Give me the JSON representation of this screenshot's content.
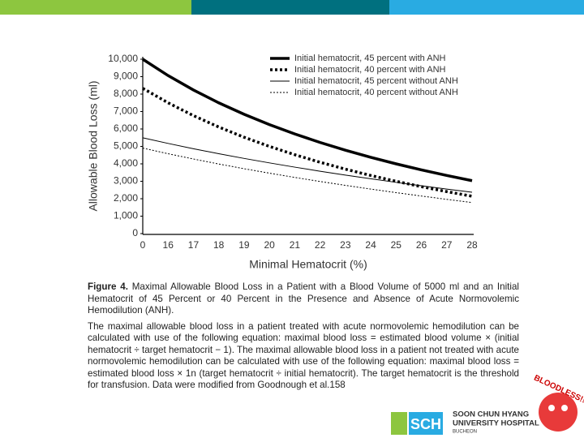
{
  "chart_data": {
    "type": "line",
    "y_label": "Allowable Blood Loss (ml)",
    "x_label": "Minimal Hematocrit (%)",
    "categories": [
      "0",
      "16",
      "17",
      "18",
      "19",
      "20",
      "21",
      "22",
      "23",
      "24",
      "25",
      "26",
      "27",
      "28"
    ],
    "series": [
      {
        "name": "Initial hematocrit, 45 percent with ANH",
        "color": "#000000",
        "width": 3.5,
        "dash": "none",
        "values": [
          10000,
          9062,
          8235,
          7500,
          6842,
          6250,
          5714,
          5227,
          4783,
          4375,
          4000,
          3654,
          3333,
          3036
        ]
      },
      {
        "name": "Initial hematocrit, 40 percent with ANH",
        "color": "#000000",
        "width": 3.5,
        "dash": "3 3",
        "values": [
          8333,
          7500,
          6765,
          6111,
          5526,
          5000,
          4524,
          4091,
          3696,
          3333,
          3000,
          2692,
          2407,
          2143
        ]
      },
      {
        "name": "Initial hematocrit, 45 percent without ANH",
        "color": "#000000",
        "width": 1,
        "dash": "none",
        "values": [
          5493,
          5171,
          4867,
          4581,
          4311,
          4055,
          3811,
          3578,
          3356,
          3143,
          2939,
          2743,
          2554,
          2372
        ]
      },
      {
        "name": "Initial hematocrit, 40 percent without ANH",
        "color": "#000000",
        "width": 1,
        "dash": "2 2",
        "values": [
          4904,
          4581,
          4278,
          3992,
          3721,
          3466,
          3221,
          2989,
          2766,
          2554,
          2350,
          2154,
          1965,
          1783
        ]
      }
    ],
    "ylim": [
      0,
      10000
    ],
    "yticks": [
      0,
      {
        "value": 1000,
        "label": "1,000"
      },
      {
        "value": 2000,
        "label": "2,000"
      },
      {
        "value": 3000,
        "label": "3,000"
      },
      {
        "value": 4000,
        "label": "4,000"
      },
      {
        "value": 5000,
        "label": "5,000"
      },
      {
        "value": 6000,
        "label": "6,000"
      },
      {
        "value": 7000,
        "label": "7,000"
      },
      {
        "value": 8000,
        "label": "8,000"
      },
      {
        "value": 9000,
        "label": "9,000"
      },
      {
        "value": 10000,
        "label": "10,000"
      }
    ],
    "grid": false,
    "legend": "top-right"
  },
  "caption": {
    "label": "Figure 4.",
    "title": "Maximal Allowable Blood Loss in a Patient with a Blood Volume of 5000 ml and an Initial Hematocrit of 45 Percent or 40 Percent in the Presence and Absence of Acute Normovolemic Hemodilution (ANH).",
    "body": "The maximal allowable blood loss in a patient treated with acute normovolemic hemodilution can be calculated with use of the following equation: maximal blood loss = estimated blood volume × (initial hematocrit ÷ target hematocrit − 1). The maximal allowable blood loss in a patient not treated with acute normovolemic hemodilution can be calculated with use of the following equation: maximal blood loss = estimated blood loss × 1n (target hematocrit ÷ initial hematocrit). The target hematocrit is the threshold for transfusion. Data were modified from Goodnough et al.158"
  },
  "logo": {
    "mark": "SCH",
    "name1": "SOON CHUN HYANG",
    "name2": "UNIVERSITY HOSPITAL",
    "city": "BUCHEON",
    "badge": "BLOODLESS!!"
  }
}
